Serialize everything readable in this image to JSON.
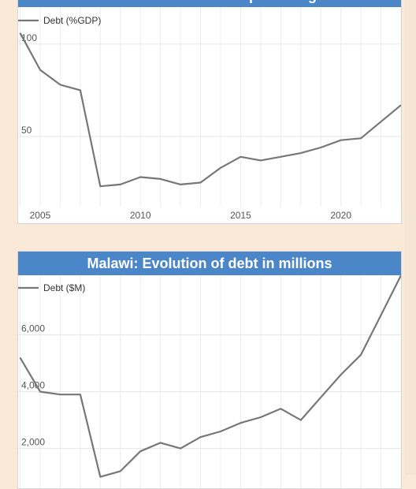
{
  "chart_data": [
    {
      "type": "line",
      "title": "Malawi: Evolution of debt as a percentage of GDP",
      "xlabel": "",
      "ylabel": "",
      "x": [
        2004,
        2005,
        2006,
        2007,
        2008,
        2009,
        2010,
        2011,
        2012,
        2013,
        2014,
        2015,
        2016,
        2017,
        2018,
        2019,
        2020,
        2021,
        2022,
        2023
      ],
      "series": [
        {
          "name": "Debt (%GDP)",
          "values": [
            106,
            86,
            78,
            75,
            23,
            24,
            28,
            27,
            24,
            25,
            33,
            39,
            37,
            39,
            41,
            44,
            48,
            49,
            58,
            67
          ]
        }
      ],
      "xlim": [
        2003.9,
        2023
      ],
      "ylim": [
        12,
        120
      ],
      "yticks": [
        50,
        100
      ],
      "xticks": [
        2005,
        2010,
        2015,
        2020
      ],
      "grid": true,
      "legend": "top-left",
      "color": "#777777"
    },
    {
      "type": "line",
      "title": "Malawi: Evolution of debt in millions",
      "xlabel": "",
      "ylabel": "",
      "x": [
        2004,
        2005,
        2006,
        2007,
        2008,
        2009,
        2010,
        2011,
        2012,
        2013,
        2014,
        2015,
        2016,
        2017,
        2018,
        2019,
        2020,
        2021,
        2022,
        2023
      ],
      "series": [
        {
          "name": "Debt ($M)",
          "values": [
            5200,
            4000,
            3900,
            3900,
            1000,
            1200,
            1900,
            2200,
            2000,
            2400,
            2600,
            2900,
            3100,
            3400,
            3000,
            3800,
            4600,
            5300,
            6700,
            8100
          ]
        }
      ],
      "xlim": [
        2003.9,
        2023
      ],
      "ylim": [
        600,
        8100
      ],
      "yticks": [
        2000,
        4000,
        6000
      ],
      "grid": true,
      "legend": "top-left",
      "color": "#777777"
    }
  ]
}
